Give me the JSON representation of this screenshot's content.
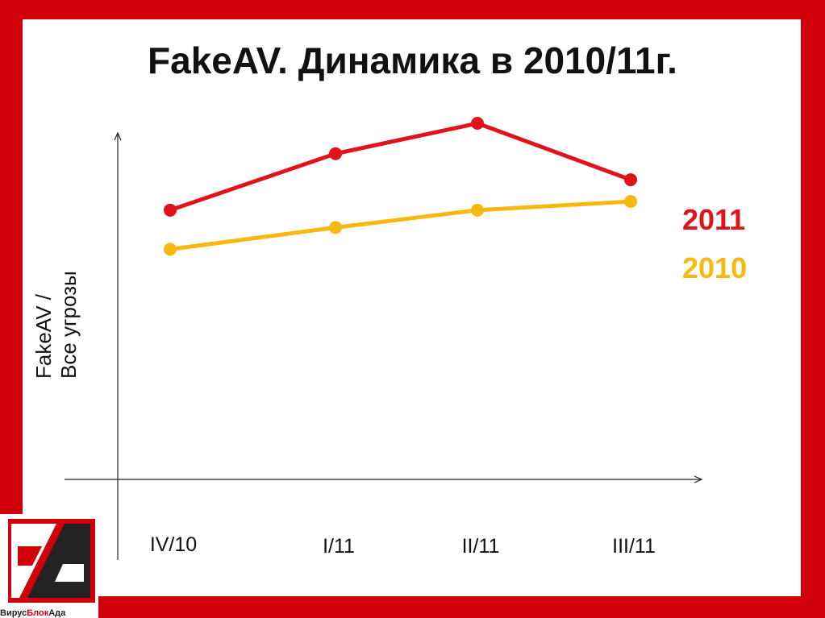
{
  "title": "FakeAV. Динамика в 2010/11г.",
  "ylabel_line1": "FakeAV /",
  "ylabel_line2": "Все угрозы",
  "logo": {
    "text_a": "Вирус",
    "text_b": "Блок",
    "text_c": "Ада"
  },
  "colors": {
    "frame": "#d0010a",
    "series_2011": "#e0131a",
    "series_2010": "#f7b80f"
  },
  "chart_data": {
    "type": "line",
    "categories": [
      "IV/10",
      "I/11",
      "II/11",
      "III/11"
    ],
    "series": [
      {
        "name": "2011",
        "values": [
          0.62,
          0.75,
          0.82,
          0.69
        ]
      },
      {
        "name": "2010",
        "values": [
          0.53,
          0.58,
          0.62,
          0.64
        ]
      }
    ],
    "xlabel": "",
    "ylabel": "FakeAV / Все угрозы",
    "ylim": [
      0,
      1
    ],
    "grid": false,
    "legend": "right"
  }
}
